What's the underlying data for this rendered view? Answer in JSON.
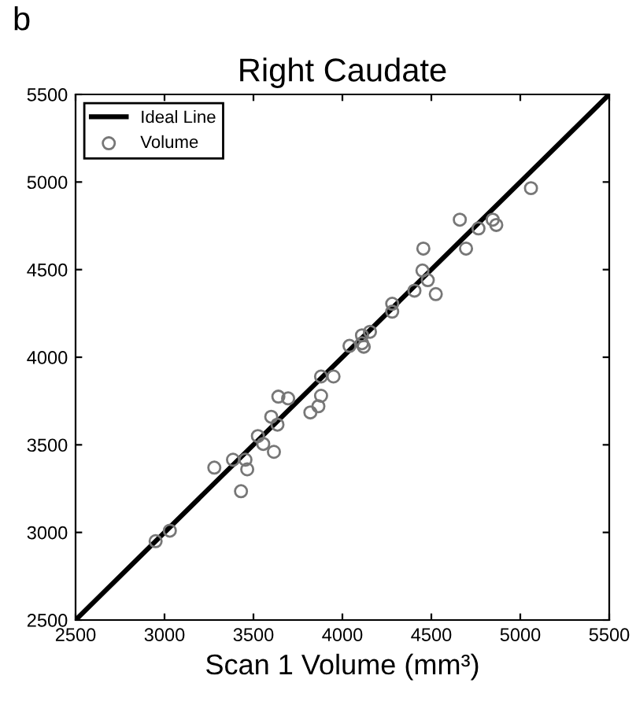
{
  "chart_data": {
    "type": "scatter",
    "title": "Right Caudate",
    "xlabel": "Scan 1 Volume (mm³)",
    "annotations": [
      "b"
    ],
    "xlim": [
      2500,
      5500
    ],
    "ylim": [
      2500,
      5500
    ],
    "xticks": [
      2500,
      3000,
      3500,
      4000,
      4500,
      5000,
      5500
    ],
    "yticks": [
      2500,
      3000,
      3500,
      4000,
      4500,
      5000,
      5500
    ],
    "grid": false,
    "legend": "top left",
    "marker": "circle",
    "series": [
      {
        "name": "Ideal Line",
        "type": "line",
        "color": "#000000",
        "marker": "none",
        "x": [
          2500,
          5500
        ],
        "values": [
          2500,
          5500
        ]
      },
      {
        "name": "Volume",
        "color": "#777777",
        "x": [
          2950,
          3030,
          3280,
          3385,
          3455,
          3465,
          3430,
          3525,
          3555,
          3615,
          3600,
          3635,
          3640,
          3695,
          3820,
          3865,
          3880,
          3950,
          3880,
          4040,
          4110,
          4110,
          4155,
          4120,
          4280,
          4280,
          4405,
          4450,
          4480,
          4525,
          4455,
          4660,
          4695,
          4765,
          4845,
          4865,
          5060
        ],
        "values": [
          2950,
          3010,
          3370,
          3415,
          3415,
          3360,
          3235,
          3550,
          3505,
          3460,
          3660,
          3615,
          3775,
          3765,
          3685,
          3720,
          3890,
          3890,
          3780,
          4065,
          4080,
          4125,
          4145,
          4060,
          4305,
          4260,
          4380,
          4495,
          4440,
          4360,
          4620,
          4785,
          4620,
          4735,
          4785,
          4755,
          4965
        ]
      }
    ]
  }
}
